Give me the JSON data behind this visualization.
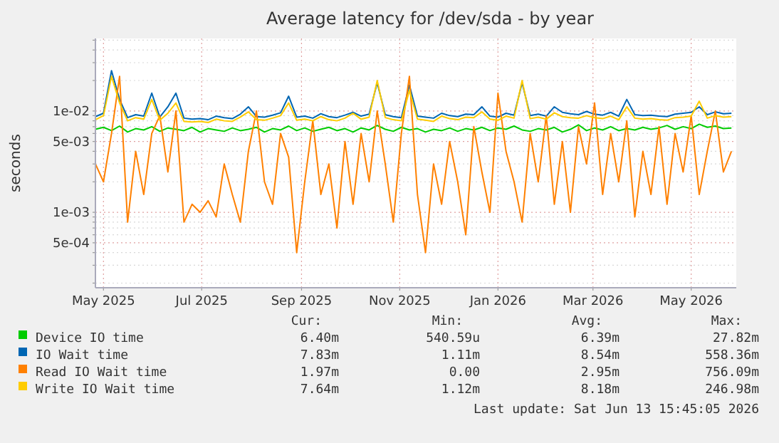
{
  "chart_data": {
    "type": "line",
    "title": "Average latency for /dev/sda - by year",
    "ylabel": "seconds",
    "log": "y",
    "grid": true,
    "legend": "bottom",
    "marker": "none",
    "line_style": "solid",
    "xlim": [
      "2025-05-11",
      "2026-06-13"
    ],
    "xticks": [
      {
        "value": "2025-05-16",
        "label": "May 2025"
      },
      {
        "value": "2025-07-16",
        "label": "Jul 2025"
      },
      {
        "value": "2025-09-16",
        "label": "Sep 2025"
      },
      {
        "value": "2025-11-16",
        "label": "Nov 2025"
      },
      {
        "value": "2026-01-16",
        "label": "Jan 2026"
      },
      {
        "value": "2026-03-16",
        "label": "Mar 2026"
      },
      {
        "value": "2026-05-16",
        "label": "May 2026"
      }
    ],
    "ylim": [
      0.00018,
      0.052
    ],
    "yticks": [
      {
        "value": 0.0002,
        "label": null
      },
      {
        "value": 0.0003,
        "label": null
      },
      {
        "value": 0.0004,
        "label": null
      },
      {
        "value": 0.0005,
        "label": "5e-04"
      },
      {
        "value": 0.0006,
        "label": null
      },
      {
        "value": 0.0007,
        "label": null
      },
      {
        "value": 0.0008,
        "label": null
      },
      {
        "value": 0.0009,
        "label": null
      },
      {
        "value": 0.001,
        "label": "1e-03"
      },
      {
        "value": 0.002,
        "label": null
      },
      {
        "value": 0.003,
        "label": null
      },
      {
        "value": 0.004,
        "label": null
      },
      {
        "value": 0.005,
        "label": "5e-03"
      },
      {
        "value": 0.006,
        "label": null
      },
      {
        "value": 0.007,
        "label": null
      },
      {
        "value": 0.008,
        "label": null
      },
      {
        "value": 0.009,
        "label": null
      },
      {
        "value": 0.01,
        "label": "1e-02"
      },
      {
        "value": 0.02,
        "label": null
      },
      {
        "value": 0.03,
        "label": null
      },
      {
        "value": 0.04,
        "label": null
      },
      {
        "value": 0.05,
        "label": null
      }
    ],
    "x": [
      "2025-05-11",
      "2025-05-16",
      "2025-05-21",
      "2025-05-26",
      "2025-05-31",
      "2025-06-05",
      "2025-06-10",
      "2025-06-15",
      "2025-06-20",
      "2025-06-25",
      "2025-06-30",
      "2025-07-05",
      "2025-07-10",
      "2025-07-15",
      "2025-07-20",
      "2025-07-25",
      "2025-07-30",
      "2025-08-04",
      "2025-08-09",
      "2025-08-14",
      "2025-08-19",
      "2025-08-24",
      "2025-08-29",
      "2025-09-03",
      "2025-09-08",
      "2025-09-13",
      "2025-09-18",
      "2025-09-23",
      "2025-09-28",
      "2025-10-03",
      "2025-10-08",
      "2025-10-13",
      "2025-10-18",
      "2025-10-23",
      "2025-10-28",
      "2025-11-02",
      "2025-11-07",
      "2025-11-12",
      "2025-11-17",
      "2025-11-22",
      "2025-11-27",
      "2025-12-02",
      "2025-12-07",
      "2025-12-12",
      "2025-12-17",
      "2025-12-22",
      "2025-12-27",
      "2026-01-01",
      "2026-01-06",
      "2026-01-11",
      "2026-01-16",
      "2026-01-21",
      "2026-01-26",
      "2026-01-31",
      "2026-02-05",
      "2026-02-10",
      "2026-02-15",
      "2026-02-20",
      "2026-02-25",
      "2026-03-02",
      "2026-03-07",
      "2026-03-12",
      "2026-03-17",
      "2026-03-22",
      "2026-03-27",
      "2026-04-01",
      "2026-04-06",
      "2026-04-11",
      "2026-04-16",
      "2026-04-21",
      "2026-04-26",
      "2026-05-01",
      "2026-05-06",
      "2026-05-11",
      "2026-05-16",
      "2026-05-21",
      "2026-05-26",
      "2026-05-31",
      "2026-06-05",
      "2026-06-10"
    ],
    "series": [
      {
        "name": "Device IO time",
        "color": "#00cc00",
        "values": [
          0.0066,
          0.0069,
          0.0064,
          0.0071,
          0.0062,
          0.0067,
          0.0065,
          0.007,
          0.0063,
          0.0068,
          0.0066,
          0.0064,
          0.0069,
          0.0062,
          0.0067,
          0.0065,
          0.0063,
          0.0068,
          0.0064,
          0.0066,
          0.0069,
          0.0062,
          0.0067,
          0.0065,
          0.0071,
          0.0064,
          0.0068,
          0.0063,
          0.0066,
          0.0069,
          0.0064,
          0.0067,
          0.0062,
          0.0068,
          0.0065,
          0.0072,
          0.0066,
          0.0063,
          0.0069,
          0.0065,
          0.0067,
          0.0062,
          0.0066,
          0.0064,
          0.0068,
          0.0063,
          0.0067,
          0.0065,
          0.0069,
          0.0064,
          0.0068,
          0.0066,
          0.0071,
          0.0065,
          0.0063,
          0.0067,
          0.0065,
          0.0069,
          0.0062,
          0.0066,
          0.0073,
          0.0064,
          0.0068,
          0.0065,
          0.007,
          0.0064,
          0.0067,
          0.0065,
          0.0069,
          0.0066,
          0.0068,
          0.0072,
          0.0066,
          0.007,
          0.0067,
          0.0074,
          0.0069,
          0.0071,
          0.0067,
          0.0068
        ]
      },
      {
        "name": "IO Wait time",
        "color": "#0066b3",
        "values": [
          0.0088,
          0.0095,
          0.025,
          0.013,
          0.0086,
          0.0092,
          0.0089,
          0.015,
          0.0087,
          0.011,
          0.015,
          0.0085,
          0.0083,
          0.0084,
          0.0082,
          0.0089,
          0.0086,
          0.0084,
          0.0093,
          0.011,
          0.0088,
          0.0087,
          0.0091,
          0.0096,
          0.014,
          0.0087,
          0.0089,
          0.0085,
          0.0094,
          0.0088,
          0.0086,
          0.0091,
          0.0097,
          0.0089,
          0.0093,
          0.019,
          0.0092,
          0.0088,
          0.0086,
          0.018,
          0.0089,
          0.0087,
          0.0085,
          0.0095,
          0.009,
          0.0088,
          0.0093,
          0.0092,
          0.011,
          0.0089,
          0.0087,
          0.0095,
          0.0091,
          0.019,
          0.009,
          0.0093,
          0.0089,
          0.011,
          0.0097,
          0.0094,
          0.0092,
          0.0099,
          0.0093,
          0.0091,
          0.0097,
          0.0089,
          0.013,
          0.0092,
          0.009,
          0.0091,
          0.0089,
          0.0088,
          0.0093,
          0.0095,
          0.0097,
          0.011,
          0.0092,
          0.0098,
          0.0094,
          0.0095
        ]
      },
      {
        "name": "Read IO Wait time",
        "color": "#ff8000",
        "values": [
          0.003,
          0.002,
          0.006,
          0.022,
          0.0008,
          0.004,
          0.0015,
          0.006,
          0.009,
          0.0025,
          0.01,
          0.0008,
          0.0012,
          0.001,
          0.0013,
          0.0009,
          0.003,
          0.0015,
          0.0008,
          0.004,
          0.01,
          0.002,
          0.0012,
          0.006,
          0.0035,
          0.0004,
          0.002,
          0.008,
          0.0015,
          0.003,
          0.0007,
          0.005,
          0.0012,
          0.006,
          0.002,
          0.01,
          0.003,
          0.0008,
          0.006,
          0.022,
          0.0015,
          0.0004,
          0.003,
          0.0012,
          0.005,
          0.002,
          0.0006,
          0.007,
          0.0025,
          0.001,
          0.015,
          0.004,
          0.002,
          0.0008,
          0.006,
          0.002,
          0.009,
          0.0012,
          0.005,
          0.001,
          0.007,
          0.003,
          0.012,
          0.0015,
          0.006,
          0.002,
          0.008,
          0.0009,
          0.004,
          0.0015,
          0.007,
          0.0012,
          0.006,
          0.0025,
          0.009,
          0.0015,
          0.004,
          0.01,
          0.0025,
          0.004
        ]
      },
      {
        "name": "Write IO Wait time",
        "color": "#ffcc00",
        "values": [
          0.0082,
          0.009,
          0.022,
          0.012,
          0.008,
          0.0086,
          0.0083,
          0.013,
          0.0081,
          0.0095,
          0.012,
          0.0079,
          0.0078,
          0.0079,
          0.0077,
          0.0083,
          0.008,
          0.0079,
          0.0087,
          0.0098,
          0.0082,
          0.0081,
          0.0085,
          0.009,
          0.012,
          0.0081,
          0.0083,
          0.008,
          0.0088,
          0.0082,
          0.008,
          0.0085,
          0.0095,
          0.0083,
          0.0087,
          0.02,
          0.0086,
          0.0082,
          0.008,
          0.016,
          0.0083,
          0.0081,
          0.0079,
          0.0089,
          0.0084,
          0.0082,
          0.0087,
          0.0086,
          0.0098,
          0.0083,
          0.0081,
          0.0089,
          0.0085,
          0.02,
          0.0084,
          0.0087,
          0.0083,
          0.0096,
          0.0088,
          0.0086,
          0.0085,
          0.009,
          0.0086,
          0.0084,
          0.0089,
          0.0082,
          0.011,
          0.0085,
          0.0083,
          0.0084,
          0.0082,
          0.0081,
          0.0086,
          0.0087,
          0.0089,
          0.0125,
          0.0085,
          0.009,
          0.0087,
          0.0088
        ]
      }
    ],
    "annotations": [
      "Cur:",
      "Min:",
      "Avg:",
      "Max:",
      "6.40m",
      "540.59u",
      "6.39m",
      "27.82m",
      "7.83m",
      "1.11m",
      "8.54m",
      "558.36m",
      "1.97m",
      "0.00",
      "2.95m",
      "756.09m",
      "7.64m",
      "1.12m",
      "8.18m",
      "246.98m",
      "Last update: Sat Jun 13 15:45:05 2026"
    ]
  }
}
